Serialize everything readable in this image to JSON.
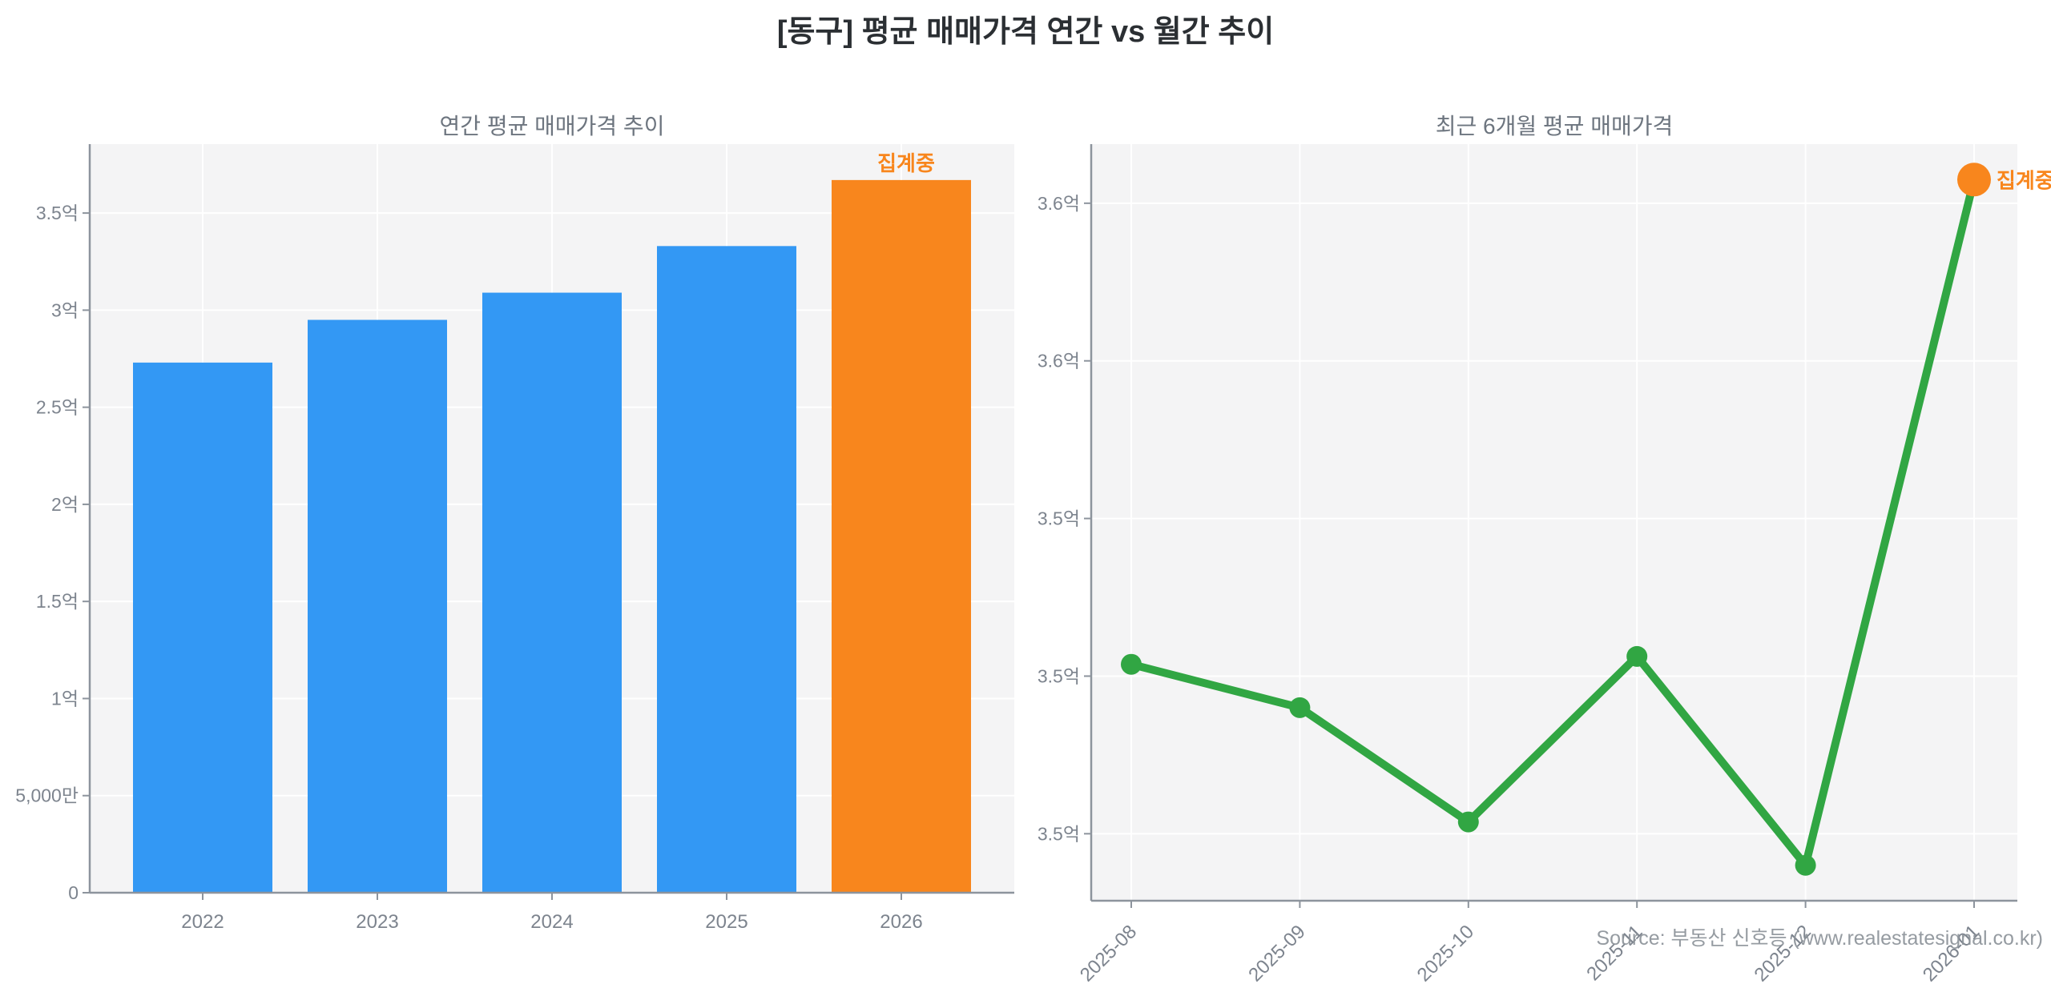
{
  "main_title": "[동구] 평균 매매가격 연간 vs 월간 추이",
  "source_note": "Source: 부동산 신호등 (www.realestatesignal.co.kr)",
  "colors": {
    "bar_blue": "#3398F4",
    "highlight_orange": "#F8861D",
    "line_green": "#31A643",
    "plot_bg": "#F4F4F5",
    "grid": "#FFFFFF",
    "spine": "#8D949D",
    "tick_label": "#7D848E",
    "subplot_title": "#6D757F",
    "main_title": "#2B2F33",
    "source": "#9BA1A8"
  },
  "chart_data": [
    {
      "type": "bar",
      "title": "연간 평균 매매가격 추이",
      "unit": "억원",
      "categories": [
        "2022",
        "2023",
        "2024",
        "2025",
        "2026"
      ],
      "values": [
        2.73,
        2.95,
        3.09,
        3.33,
        3.67
      ],
      "highlight_index": 4,
      "highlight_label": "집계중",
      "ytick_values": [
        0,
        0.5,
        1.0,
        1.5,
        2.0,
        2.5,
        3.0,
        3.5
      ],
      "ytick_labels": [
        "0",
        "5,000만",
        "1억",
        "1.5억",
        "2억",
        "2.5억",
        "3억",
        "3.5억"
      ],
      "ylim": [
        0,
        3.855
      ],
      "grid": true,
      "legend": "none"
    },
    {
      "type": "line",
      "title": "최근 6개월 평균 매매가격",
      "unit": "억원",
      "x": [
        "2025-08",
        "2025-09",
        "2025-10",
        "2025-11",
        "2025-12",
        "2026-01"
      ],
      "values": [
        3.503,
        3.492,
        3.463,
        3.505,
        3.452,
        3.626
      ],
      "highlight_index": 5,
      "highlight_label": "집계중",
      "ytick_values": [
        3.62,
        3.58,
        3.54,
        3.5,
        3.46
      ],
      "ytick_labels": [
        "3.6억",
        "3.6억",
        "3.5억",
        "3.5억",
        "3.5억"
      ],
      "ylim": [
        3.443,
        3.635
      ],
      "grid": true,
      "legend": "none"
    }
  ]
}
